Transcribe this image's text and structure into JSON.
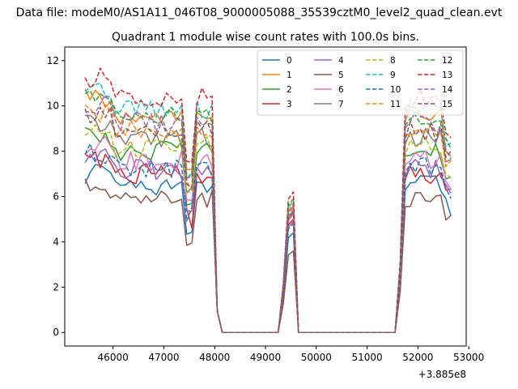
{
  "suptitle": "Data file: modeM0/AS1A11_046T08_9000005088_35539cztM0_level2_quad_clean.evt",
  "chart_data": {
    "type": "line",
    "title": "Quadrant 1 module wise count rates with 100.0s bins.",
    "xlabel": "",
    "ylabel": "",
    "x_offset_label": "+3.885e8",
    "xlim": [
      45050,
      52950
    ],
    "ylim": [
      -0.6,
      12.6
    ],
    "xticks": [
      46000,
      47000,
      48000,
      49000,
      50000,
      51000,
      52000,
      53000
    ],
    "yticks": [
      0,
      2,
      4,
      6,
      8,
      10,
      12
    ],
    "legend_location": "upper right",
    "legend_columns": 4,
    "bin_seconds": 100.0,
    "x_start": 45450,
    "x_step": 100,
    "gaps_zero_ranges": [
      [
        48150,
        49250
      ],
      [
        49650,
        51550
      ]
    ],
    "series": [
      {
        "name": "0",
        "color": "#1f77b4",
        "linestyle": "solid",
        "level": 6.5,
        "peak": 4.4
      },
      {
        "name": "1",
        "color": "#ff7f0e",
        "linestyle": "solid",
        "level": 9.6,
        "peak": 5.6
      },
      {
        "name": "2",
        "color": "#2ca02c",
        "linestyle": "solid",
        "level": 8.0,
        "peak": 5.3
      },
      {
        "name": "3",
        "color": "#d62728",
        "linestyle": "solid",
        "level": 7.0,
        "peak": 5.0
      },
      {
        "name": "4",
        "color": "#9467bd",
        "linestyle": "solid",
        "level": 7.2,
        "peak": 4.9
      },
      {
        "name": "5",
        "color": "#8c564b",
        "linestyle": "solid",
        "level": 5.9,
        "peak": 3.6
      },
      {
        "name": "6",
        "color": "#e377c2",
        "linestyle": "solid",
        "level": 7.6,
        "peak": 5.2
      },
      {
        "name": "7",
        "color": "#7f7f7f",
        "linestyle": "solid",
        "level": 8.6,
        "peak": 5.4
      },
      {
        "name": "8",
        "color": "#bcbd22",
        "linestyle": "dashed",
        "level": 8.2,
        "peak": 5.7
      },
      {
        "name": "9",
        "color": "#17becf",
        "linestyle": "dashed",
        "level": 9.9,
        "peak": 5.8
      },
      {
        "name": "10",
        "color": "#1f77b4",
        "linestyle": "dashed",
        "level": 7.3,
        "peak": 4.8
      },
      {
        "name": "11",
        "color": "#ff7f0e",
        "linestyle": "dashed",
        "level": 9.0,
        "peak": 5.5
      },
      {
        "name": "12",
        "color": "#2ca02c",
        "linestyle": "dashed",
        "level": 9.6,
        "peak": 5.9
      },
      {
        "name": "13",
        "color": "#d62728",
        "linestyle": "dashed",
        "level": 10.4,
        "peak": 6.2
      },
      {
        "name": "14",
        "color": "#9467bd",
        "linestyle": "dashed",
        "level": 9.3,
        "peak": 5.6
      },
      {
        "name": "15",
        "color": "#8c564b",
        "linestyle": "dashed",
        "level": 8.9,
        "peak": 5.3
      }
    ]
  }
}
